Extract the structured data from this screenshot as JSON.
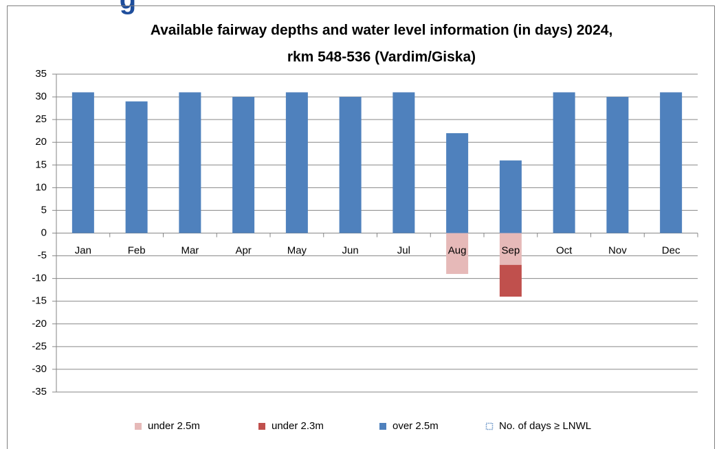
{
  "heading": "g",
  "chart_data": {
    "type": "bar",
    "title": [
      "Available fairway depths and water level information (in days) 2024,",
      "rkm 548-536 (Vardim/Giska)"
    ],
    "categories": [
      "Jan",
      "Feb",
      "Mar",
      "Apr",
      "May",
      "Jun",
      "Jul",
      "Aug",
      "Sep",
      "Oct",
      "Nov",
      "Dec"
    ],
    "series": [
      {
        "name": "under 2.5m",
        "color": "#e6b9b8",
        "values": [
          null,
          null,
          null,
          null,
          null,
          null,
          null,
          -9,
          -7,
          null,
          null,
          null
        ]
      },
      {
        "name": "under 2.3m",
        "color": "#c0504d",
        "values": [
          null,
          null,
          null,
          null,
          null,
          null,
          null,
          null,
          -7,
          null,
          null,
          null
        ]
      },
      {
        "name": "over 2.5m",
        "color": "#4f81bd",
        "values": [
          31,
          29,
          31,
          30,
          31,
          30,
          31,
          22,
          16,
          31,
          30,
          31
        ]
      },
      {
        "name": "No. of days ≥ LNWL",
        "color": "#4f81bd",
        "values": [
          null,
          null,
          null,
          null,
          null,
          null,
          null,
          null,
          null,
          null,
          null,
          null
        ]
      }
    ],
    "stacked": true,
    "ylim": [
      -35,
      35
    ],
    "yticks": [
      -35,
      -30,
      -25,
      -20,
      -15,
      -10,
      -5,
      0,
      5,
      10,
      15,
      20,
      25,
      30,
      35
    ],
    "grid": true,
    "legend": "bottom"
  }
}
